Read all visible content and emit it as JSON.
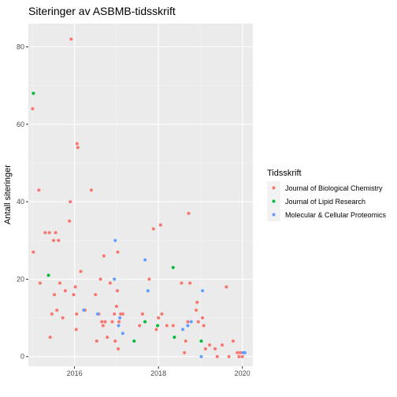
{
  "chart_data": {
    "type": "scatter",
    "title": "Siteringer av ASBMB-tidsskrift",
    "xlabel": "",
    "ylabel": "Antall siteringer",
    "xlim": [
      2014.9,
      2020.25
    ],
    "ylim": [
      -2.5,
      86
    ],
    "xticks": [
      2016,
      2018,
      2020
    ],
    "yticks": [
      0,
      20,
      40,
      60,
      80
    ],
    "grid": true,
    "legend": {
      "title": "Tidsskrift",
      "placement": "right"
    },
    "series": [
      {
        "name": "Journal of Biological Chemistry",
        "color": "#F8766D",
        "points": [
          [
            2015.0,
            64
          ],
          [
            2015.02,
            27
          ],
          [
            2015.15,
            43
          ],
          [
            2015.18,
            19
          ],
          [
            2015.3,
            32
          ],
          [
            2015.4,
            32
          ],
          [
            2015.42,
            5
          ],
          [
            2015.46,
            11
          ],
          [
            2015.5,
            30
          ],
          [
            2015.52,
            16
          ],
          [
            2015.55,
            32
          ],
          [
            2015.58,
            12
          ],
          [
            2015.62,
            30
          ],
          [
            2015.65,
            19
          ],
          [
            2015.72,
            10
          ],
          [
            2015.78,
            17
          ],
          [
            2015.88,
            35
          ],
          [
            2015.9,
            40
          ],
          [
            2015.92,
            82
          ],
          [
            2015.98,
            16
          ],
          [
            2016.02,
            18
          ],
          [
            2016.04,
            7
          ],
          [
            2016.05,
            11
          ],
          [
            2016.06,
            55
          ],
          [
            2016.08,
            54
          ],
          [
            2016.15,
            22
          ],
          [
            2016.25,
            12
          ],
          [
            2016.4,
            43
          ],
          [
            2016.5,
            16
          ],
          [
            2016.53,
            4
          ],
          [
            2016.58,
            11
          ],
          [
            2016.62,
            20
          ],
          [
            2016.65,
            9
          ],
          [
            2016.68,
            8
          ],
          [
            2016.7,
            26
          ],
          [
            2016.73,
            9
          ],
          [
            2016.78,
            5
          ],
          [
            2016.85,
            19
          ],
          [
            2016.9,
            9
          ],
          [
            2016.95,
            11
          ],
          [
            2016.97,
            4
          ],
          [
            2017.0,
            13
          ],
          [
            2017.02,
            17
          ],
          [
            2017.03,
            27
          ],
          [
            2017.04,
            2
          ],
          [
            2017.06,
            9
          ],
          [
            2017.1,
            11
          ],
          [
            2017.15,
            11
          ],
          [
            2017.55,
            8
          ],
          [
            2017.62,
            11
          ],
          [
            2017.78,
            20
          ],
          [
            2017.88,
            33
          ],
          [
            2017.95,
            7
          ],
          [
            2018.0,
            10
          ],
          [
            2018.05,
            34
          ],
          [
            2018.08,
            11
          ],
          [
            2018.2,
            8
          ],
          [
            2018.35,
            8
          ],
          [
            2018.55,
            19
          ],
          [
            2018.62,
            1
          ],
          [
            2018.65,
            4
          ],
          [
            2018.7,
            9
          ],
          [
            2018.72,
            37
          ],
          [
            2018.75,
            19
          ],
          [
            2018.9,
            12
          ],
          [
            2018.92,
            14
          ],
          [
            2018.95,
            9
          ],
          [
            2019.05,
            10
          ],
          [
            2019.08,
            8
          ],
          [
            2019.12,
            2
          ],
          [
            2019.22,
            3
          ],
          [
            2019.35,
            2
          ],
          [
            2019.4,
            0
          ],
          [
            2019.52,
            3
          ],
          [
            2019.62,
            18
          ],
          [
            2019.68,
            0
          ],
          [
            2019.78,
            4
          ],
          [
            2019.88,
            1
          ],
          [
            2019.92,
            0
          ],
          [
            2019.95,
            1
          ],
          [
            2020.0,
            0
          ]
        ]
      },
      {
        "name": "Journal of Lipid Research",
        "color": "#00BA38",
        "points": [
          [
            2015.02,
            68
          ],
          [
            2015.38,
            21
          ],
          [
            2017.42,
            4
          ],
          [
            2017.68,
            9
          ],
          [
            2017.98,
            8
          ],
          [
            2018.35,
            23
          ],
          [
            2018.38,
            5
          ],
          [
            2019.02,
            4
          ]
        ]
      },
      {
        "name": "Molecular & Cellular Proteomics",
        "color": "#619CFF",
        "points": [
          [
            2016.22,
            12
          ],
          [
            2016.55,
            11
          ],
          [
            2016.95,
            20
          ],
          [
            2016.97,
            30
          ],
          [
            2017.05,
            8
          ],
          [
            2017.08,
            10
          ],
          [
            2017.15,
            6
          ],
          [
            2017.68,
            25
          ],
          [
            2017.75,
            17
          ],
          [
            2018.58,
            7
          ],
          [
            2018.7,
            8
          ],
          [
            2018.78,
            9
          ],
          [
            2019.02,
            0
          ],
          [
            2019.05,
            17
          ],
          [
            2020.02,
            1
          ],
          [
            2020.06,
            1
          ]
        ]
      }
    ]
  }
}
